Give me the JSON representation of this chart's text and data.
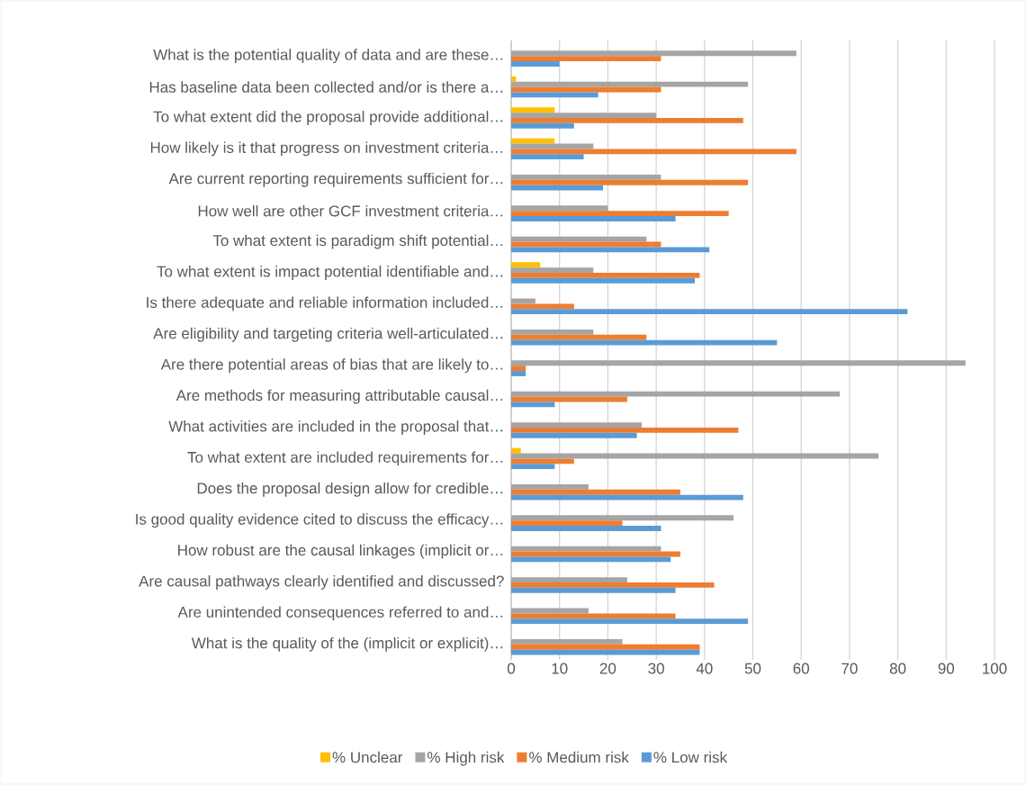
{
  "chart_data": {
    "type": "bar",
    "orientation": "horizontal",
    "categories": [
      "What is the potential quality of data and are these…",
      "Has baseline data been collected and/or is there a…",
      "To what extent did the proposal provide additional…",
      "How likely is it that progress on investment criteria…",
      "Are current reporting requirements sufficient for…",
      "How well are other GCF investment criteria…",
      "To what extent is paradigm shift potential…",
      "To what extent is impact potential identifiable and…",
      "Is there adequate and reliable information included…",
      "Are eligibility and targeting criteria well-articulated…",
      "Are there potential areas of bias that are likely to…",
      "Are methods for measuring attributable causal…",
      "What activities are included in the proposal that…",
      "To what extent are included requirements for…",
      "Does the proposal design allow for credible…",
      "Is good quality evidence cited to discuss the efficacy…",
      "How robust are the causal linkages (implicit or…",
      "Are causal pathways clearly identified and discussed?",
      "Are unintended consequences referred to and…",
      "What is the quality of the (implicit or explicit)…"
    ],
    "series": [
      {
        "name": "% Unclear",
        "color": "#ffc000",
        "values": [
          null,
          1,
          9,
          9,
          null,
          null,
          null,
          6,
          null,
          null,
          null,
          null,
          null,
          2,
          null,
          null,
          null,
          null,
          null,
          null
        ]
      },
      {
        "name": "% High risk",
        "color": "#a5a5a5",
        "values": [
          59,
          49,
          30,
          17,
          31,
          20,
          28,
          17,
          5,
          17,
          94,
          68,
          27,
          76,
          16,
          46,
          31,
          24,
          16,
          23
        ]
      },
      {
        "name": "% Medium risk",
        "color": "#ed7d31",
        "values": [
          31,
          31,
          48,
          59,
          49,
          45,
          31,
          39,
          13,
          28,
          3,
          24,
          47,
          13,
          35,
          23,
          35,
          42,
          34,
          39
        ]
      },
      {
        "name": "% Low risk",
        "color": "#5b9bd5",
        "values": [
          10,
          18,
          13,
          15,
          19,
          34,
          41,
          38,
          82,
          55,
          3,
          9,
          26,
          9,
          48,
          31,
          33,
          34,
          49,
          39
        ]
      }
    ],
    "xlim": [
      0,
      100
    ],
    "xticks": [
      0,
      10,
      20,
      30,
      40,
      50,
      60,
      70,
      80,
      90,
      100
    ],
    "grid": "x",
    "legend": "bottom"
  }
}
